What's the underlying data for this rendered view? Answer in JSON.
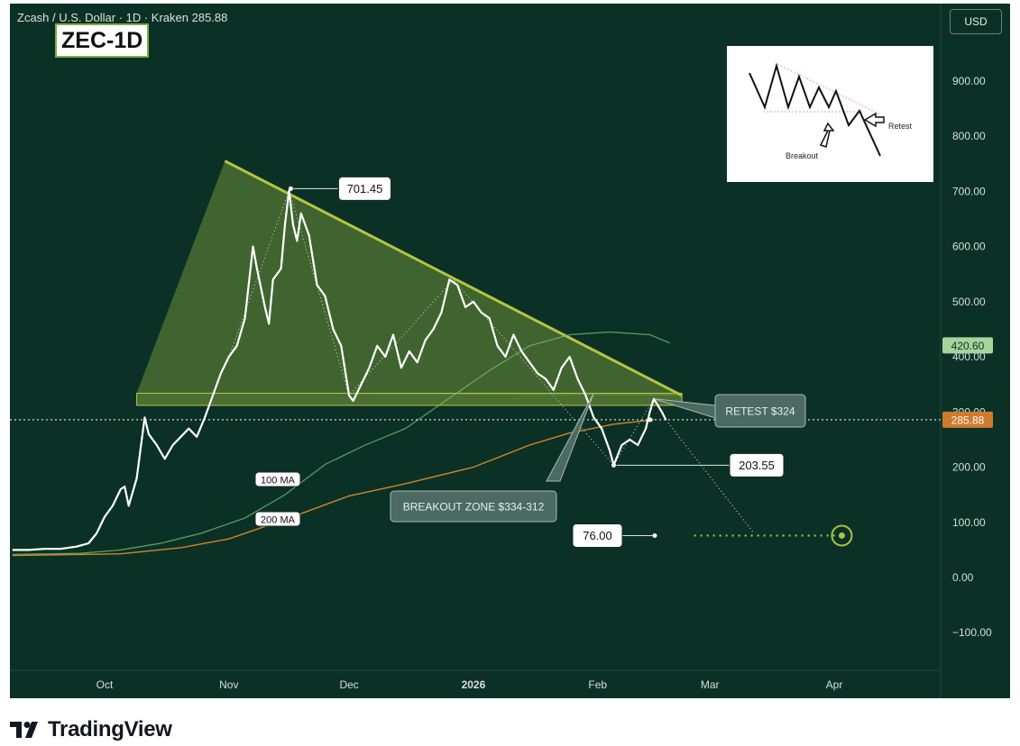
{
  "header": {
    "symbol_line": "Zcash / U.S. Dollar · 1D · Kraken  285.88",
    "ticker_badge": "ZEC-1D",
    "currency_button": "USD"
  },
  "inset": {
    "breakout_label": "Breakout",
    "retest_label": "Retest"
  },
  "footer": {
    "brand": "TradingView"
  },
  "colors": {
    "background": "#0b3127",
    "price_line": "#ffffff",
    "triangle_fill": "#7fa33b",
    "triangle_edge": "#b5c640",
    "ma100": "#6fbf6f",
    "ma200": "#d2852c",
    "label_callout": "#4b6b62",
    "current_price_tag": "#d07a2e",
    "ma100_tag": "#a7d49b"
  },
  "chart_data": {
    "type": "line",
    "title": "Zcash / U.S. Dollar · 1D · Kraken",
    "xlabel": "",
    "ylabel": "",
    "ylim": [
      -200,
      1000
    ],
    "yticks": [
      "900.00",
      "800.00",
      "700.00",
      "600.00",
      "500.00",
      "400.00",
      "300.00",
      "200.00",
      "100.00",
      "0.00",
      "−100.00"
    ],
    "ytick_values": [
      900,
      800,
      700,
      600,
      500,
      400,
      300,
      200,
      100,
      0,
      -100
    ],
    "xticks": [
      {
        "label": "Oct",
        "date": "2025-10-01"
      },
      {
        "label": "Nov",
        "date": "2025-11-01"
      },
      {
        "label": "Dec",
        "date": "2025-12-01"
      },
      {
        "label": "2026",
        "date": "2026-01-01"
      },
      {
        "label": "Feb",
        "date": "2026-02-01"
      },
      {
        "label": "Mar",
        "date": "2026-03-01"
      },
      {
        "label": "Apr",
        "date": "2026-04-01"
      }
    ],
    "grid": false,
    "legend": "none",
    "series": [
      {
        "name": "",
        "points": [
          [
            "2025-09-08",
            50
          ],
          [
            "2025-09-12",
            50
          ],
          [
            "2025-09-16",
            52
          ],
          [
            "2025-09-20",
            52
          ],
          [
            "2025-09-24",
            56
          ],
          [
            "2025-09-27",
            62
          ],
          [
            "2025-09-29",
            80
          ],
          [
            "2025-10-01",
            110
          ],
          [
            "2025-10-03",
            130
          ],
          [
            "2025-10-05",
            160
          ],
          [
            "2025-10-06",
            165
          ],
          [
            "2025-10-07",
            130
          ],
          [
            "2025-10-09",
            180
          ],
          [
            "2025-10-11",
            290
          ],
          [
            "2025-10-12",
            260
          ],
          [
            "2025-10-14",
            240
          ],
          [
            "2025-10-16",
            215
          ],
          [
            "2025-10-18",
            240
          ],
          [
            "2025-10-20",
            255
          ],
          [
            "2025-10-22",
            270
          ],
          [
            "2025-10-24",
            255
          ],
          [
            "2025-10-26",
            290
          ],
          [
            "2025-10-28",
            330
          ],
          [
            "2025-10-30",
            370
          ],
          [
            "2025-11-01",
            400
          ],
          [
            "2025-11-03",
            420
          ],
          [
            "2025-11-05",
            470
          ],
          [
            "2025-11-07",
            600
          ],
          [
            "2025-11-08",
            560
          ],
          [
            "2025-11-10",
            490
          ],
          [
            "2025-11-11",
            460
          ],
          [
            "2025-11-12",
            540
          ],
          [
            "2025-11-14",
            560
          ],
          [
            "2025-11-15",
            640
          ],
          [
            "2025-11-16",
            701.45
          ],
          [
            "2025-11-17",
            640
          ],
          [
            "2025-11-18",
            610
          ],
          [
            "2025-11-19",
            660
          ],
          [
            "2025-11-21",
            620
          ],
          [
            "2025-11-23",
            530
          ],
          [
            "2025-11-25",
            510
          ],
          [
            "2025-11-27",
            450
          ],
          [
            "2025-11-29",
            420
          ],
          [
            "2025-12-01",
            330
          ],
          [
            "2025-12-02",
            320
          ],
          [
            "2025-12-04",
            350
          ],
          [
            "2025-12-06",
            380
          ],
          [
            "2025-12-08",
            420
          ],
          [
            "2025-12-10",
            400
          ],
          [
            "2025-12-12",
            440
          ],
          [
            "2025-12-14",
            380
          ],
          [
            "2025-12-16",
            410
          ],
          [
            "2025-12-18",
            390
          ],
          [
            "2025-12-20",
            430
          ],
          [
            "2025-12-22",
            450
          ],
          [
            "2025-12-24",
            480
          ],
          [
            "2025-12-26",
            540
          ],
          [
            "2025-12-28",
            530
          ],
          [
            "2025-12-30",
            490
          ],
          [
            "2026-01-01",
            500
          ],
          [
            "2026-01-03",
            480
          ],
          [
            "2026-01-05",
            470
          ],
          [
            "2026-01-07",
            420
          ],
          [
            "2026-01-09",
            400
          ],
          [
            "2026-01-11",
            440
          ],
          [
            "2026-01-13",
            410
          ],
          [
            "2026-01-15",
            390
          ],
          [
            "2026-01-17",
            370
          ],
          [
            "2026-01-19",
            360
          ],
          [
            "2026-01-21",
            340
          ],
          [
            "2026-01-23",
            380
          ],
          [
            "2026-01-25",
            400
          ],
          [
            "2026-01-27",
            360
          ],
          [
            "2026-01-29",
            330
          ],
          [
            "2026-01-31",
            290
          ],
          [
            "2026-02-02",
            270
          ],
          [
            "2026-02-04",
            230
          ],
          [
            "2026-02-05",
            203.55
          ],
          [
            "2026-02-07",
            240
          ],
          [
            "2026-02-09",
            250
          ],
          [
            "2026-02-11",
            240
          ],
          [
            "2026-02-13",
            270
          ],
          [
            "2026-02-14",
            300
          ],
          [
            "2026-02-15",
            324
          ],
          [
            "2026-02-17",
            300
          ],
          [
            "2026-02-18",
            285.88
          ]
        ]
      },
      {
        "name": "100 MA",
        "points": [
          [
            "2025-09-08",
            42
          ],
          [
            "2025-09-25",
            44
          ],
          [
            "2025-10-05",
            50
          ],
          [
            "2025-10-15",
            62
          ],
          [
            "2025-10-25",
            80
          ],
          [
            "2025-11-05",
            108
          ],
          [
            "2025-11-15",
            150
          ],
          [
            "2025-11-25",
            205
          ],
          [
            "2025-12-05",
            240
          ],
          [
            "2025-12-15",
            270
          ],
          [
            "2025-12-25",
            320
          ],
          [
            "2026-01-05",
            375
          ],
          [
            "2026-01-15",
            420
          ],
          [
            "2026-01-25",
            440
          ],
          [
            "2026-02-04",
            445
          ],
          [
            "2026-02-14",
            440
          ],
          [
            "2026-02-19",
            425
          ]
        ]
      },
      {
        "name": "200 MA",
        "points": [
          [
            "2025-09-08",
            40
          ],
          [
            "2025-10-05",
            43
          ],
          [
            "2025-10-20",
            54
          ],
          [
            "2025-11-01",
            70
          ],
          [
            "2025-11-15",
            105
          ],
          [
            "2025-12-01",
            148
          ],
          [
            "2025-12-15",
            170
          ],
          [
            "2026-01-01",
            200
          ],
          [
            "2026-01-15",
            240
          ],
          [
            "2026-01-25",
            262
          ],
          [
            "2026-02-05",
            278
          ],
          [
            "2026-02-15",
            285.88
          ]
        ]
      }
    ],
    "triangle": {
      "apex": [
        "2025-10-31",
        755
      ],
      "upper_trendline": [
        [
          "2025-10-31",
          755
        ],
        [
          "2026-02-22",
          330
        ]
      ],
      "base_left": [
        "2025-10-09",
        330
      ],
      "support_zone": {
        "high": 334,
        "low": 312,
        "from": "2025-10-09",
        "to": "2026-02-22"
      }
    },
    "projection": [
      [
        "2026-02-18",
        285.88
      ],
      [
        "2026-03-12",
        80
      ]
    ],
    "target_line": {
      "value": 76.0,
      "from": "2026-02-21",
      "to": "2026-04-02"
    },
    "annotations": [
      {
        "label": "701.45",
        "date": "2025-11-16",
        "value": 701.45
      },
      {
        "label": "RETEST $324",
        "date": "2026-02-15",
        "value": 324
      },
      {
        "label": "203.55",
        "date": "2026-02-05",
        "value": 203.55
      },
      {
        "label": "76.00",
        "date": "2026-02-21",
        "value": 76.0
      },
      {
        "label": "BREAKOUT ZONE $334-312",
        "date": "2026-01-31",
        "value": 312
      },
      {
        "label": "100 MA",
        "date": "2025-10-30",
        "value": 180
      },
      {
        "label": "200 MA",
        "date": "2025-10-30",
        "value": 110
      }
    ],
    "price_tags": [
      {
        "label": "420.60",
        "value": 420.6
      },
      {
        "label": "285.88",
        "value": 285.88
      }
    ]
  }
}
